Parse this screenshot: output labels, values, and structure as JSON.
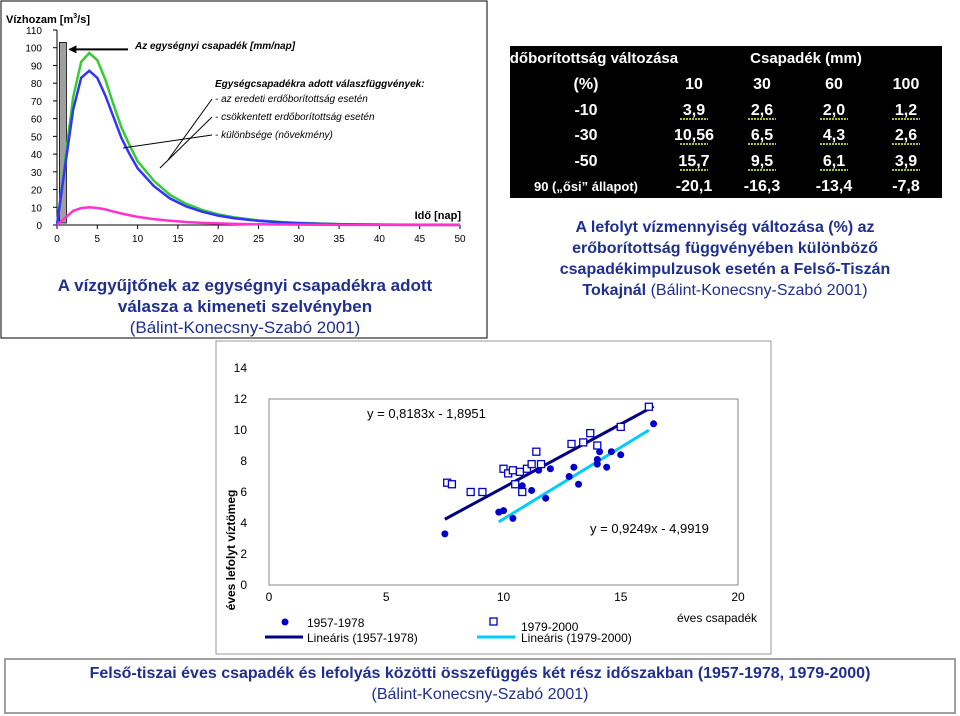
{
  "chart_data": [
    {
      "type": "line",
      "ylabel_prefix": "Vízhozam [m",
      "ylabel_sup": "3",
      "ylabel_suffix": "/s]",
      "xlabel": "Idő [nap]",
      "x_ticks": [
        0,
        5,
        10,
        15,
        20,
        25,
        30,
        35,
        40,
        45,
        50
      ],
      "y_ticks": [
        0,
        10,
        20,
        30,
        40,
        50,
        60,
        70,
        80,
        90,
        100,
        110
      ],
      "xlim": [
        0,
        50
      ],
      "ylim": [
        0,
        110
      ],
      "bar_label": "Az egységnyi csapadék [mm/nap]",
      "bar_value": 103,
      "bar_x": 0.3,
      "legend_title": "Egységcsapadékra adott válaszfüggvények:",
      "legend_items": [
        "- az eredeti erdőborítottság esetén",
        "- csökkentett erdőborítottság esetén",
        "- különbsége (növekmény)"
      ],
      "series": [
        {
          "color": "#33cc33",
          "x": [
            0,
            1,
            2,
            3,
            4,
            5,
            6,
            7,
            8,
            9,
            10,
            12,
            14,
            16,
            18,
            20,
            22,
            25,
            28,
            30,
            35,
            40,
            45,
            50
          ],
          "y": [
            0,
            36,
            72,
            92,
            97,
            93,
            82,
            68,
            55,
            45,
            36,
            25,
            17,
            12,
            8.5,
            6,
            4.3,
            2.6,
            1.6,
            1.2,
            0.5,
            0.25,
            0.12,
            0.05
          ]
        },
        {
          "color": "#3333ff",
          "x": [
            0,
            1,
            2,
            3,
            4,
            5,
            6,
            7,
            8,
            9,
            10,
            12,
            14,
            16,
            18,
            20,
            22,
            25,
            28,
            30,
            35,
            40,
            45,
            50
          ],
          "y": [
            0,
            33,
            65,
            83,
            87,
            83,
            73,
            61,
            49,
            40,
            32,
            22,
            15,
            10.5,
            7.5,
            5.3,
            3.8,
            2.3,
            1.4,
            1,
            0.45,
            0.2,
            0.1,
            0.04
          ]
        },
        {
          "color": "#ff33cc",
          "x": [
            0,
            1,
            2,
            3,
            4,
            5,
            6,
            7,
            8,
            9,
            10,
            12,
            14,
            16,
            18,
            20,
            22,
            25,
            28,
            30,
            35,
            40,
            45,
            50
          ],
          "y": [
            0,
            4,
            8,
            9.5,
            10,
            9.6,
            8.8,
            7.6,
            6.5,
            5.5,
            4.6,
            3.3,
            2.4,
            1.7,
            1.2,
            0.9,
            0.65,
            0.4,
            0.25,
            0.18,
            0.08,
            0.04,
            0.02,
            0.01
          ]
        }
      ],
      "caption_lines": [
        "A vízgyűjtőnek az egységnyi csapadékra adott",
        "válasza a kimeneti szelvényben"
      ],
      "caption_source": "(Bálint-Konecsny-Szabó 2001)"
    },
    {
      "type": "table",
      "header_row1": [
        "Erdőborítottság változása",
        "Csapadék (mm)"
      ],
      "header_row2": [
        "(%)",
        "10",
        "30",
        "60",
        "100"
      ],
      "rows": [
        [
          "-10",
          "3,9",
          "2,6",
          "2,0",
          "1,2"
        ],
        [
          "-30",
          "10,56",
          "6,5",
          "4,3",
          "2,6"
        ],
        [
          "-50",
          "15,7",
          "9,5",
          "6,1",
          "3,9"
        ],
        [
          "90 („ősi” állapot)",
          "-20,1",
          "-16,3",
          "-13,4",
          "-7,8"
        ]
      ],
      "caption_lines": [
        "A lefolyt vízmennyiség változása (%) az",
        "erőborítottság függvényében különböző",
        "csapadékimpulzusok esetén a Felső-Tiszán"
      ],
      "caption_last_bold": "Tokajnál",
      "caption_source": "(Bálint-Konecsny-Szabó 2001)"
    },
    {
      "type": "scatter",
      "ylabel": "éves lefolyt víztömeg",
      "xlabel": "éves csapadék",
      "x_ticks": [
        0,
        5,
        10,
        15,
        20
      ],
      "y_ticks": [
        0,
        2,
        4,
        6,
        8,
        10,
        12,
        14
      ],
      "xlim": [
        0,
        20
      ],
      "ylim": [
        0,
        14
      ],
      "series": [
        {
          "name": "1957-1978",
          "marker": "circle",
          "color": "#0000cc",
          "x": [
            7.5,
            9.8,
            10.0,
            10.4,
            10.8,
            11.2,
            11.5,
            11.8,
            12.0,
            12.8,
            13.0,
            13.2,
            14.0,
            14.0,
            14.1,
            14.4,
            14.6,
            15.0,
            16.4
          ],
          "y": [
            3.3,
            4.7,
            4.8,
            4.3,
            6.4,
            6.1,
            7.4,
            5.6,
            7.5,
            7.0,
            7.6,
            6.5,
            7.8,
            8.1,
            8.6,
            7.6,
            8.6,
            8.4,
            10.4
          ],
          "trend_label": "y = 0,8183x - 1,8951",
          "trend": {
            "slope": 0.8183,
            "intercept": -1.8951,
            "x_from": 7.5,
            "x_to": 16.4
          },
          "trend_name": "Lineáris (1957-1978)",
          "trend_color": "#000080"
        },
        {
          "name": "1979-2000",
          "marker": "square",
          "color": "#0000cc",
          "x": [
            7.6,
            7.8,
            8.6,
            9.1,
            10.0,
            10.2,
            10.4,
            10.5,
            10.7,
            10.8,
            11.0,
            11.2,
            11.4,
            11.6,
            12.9,
            13.4,
            13.7,
            14.0,
            15.0,
            16.2
          ],
          "y": [
            6.6,
            6.5,
            6.0,
            6.0,
            7.5,
            7.2,
            7.4,
            6.5,
            7.3,
            6.0,
            7.5,
            7.8,
            8.6,
            7.8,
            9.1,
            9.2,
            9.8,
            9.0,
            10.2,
            11.5
          ],
          "trend_label": "y = 0,9249x - 4,9919",
          "trend": {
            "slope": 0.9249,
            "intercept": -4.9919,
            "x_from": 9.8,
            "x_to": 16.2
          },
          "trend_name": "Lineáris (1979-2000)",
          "trend_color": "#00ccff"
        }
      ],
      "caption_line1": "Felső-tiszai éves csapadék és lefolyás közötti összefüggés két rész időszakban (1957-1978, 1979-2000)",
      "caption_source": "(Bálint-Konecsny-Szabó 2001)"
    }
  ]
}
